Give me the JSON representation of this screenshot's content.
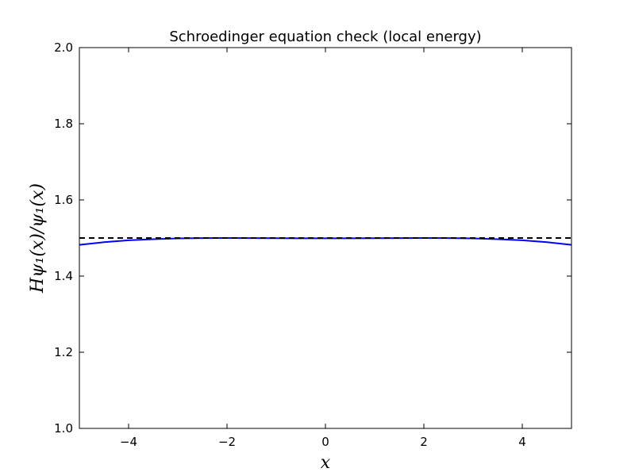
{
  "chart_data": {
    "type": "line",
    "title": "Schroedinger equation check (local energy)",
    "xlabel": "x",
    "ylabel": "Hψ₁(x)/ψ₁(x)",
    "xlim": [
      -5,
      5
    ],
    "ylim": [
      1.0,
      2.0
    ],
    "grid": false,
    "x_ticks": [
      -4,
      -2,
      0,
      2,
      4
    ],
    "x_tick_labels": [
      "−4",
      "−2",
      "0",
      "2",
      "4"
    ],
    "y_ticks": [
      1.0,
      1.2,
      1.4,
      1.6,
      1.8,
      2.0
    ],
    "y_tick_labels": [
      "1.0",
      "1.2",
      "1.4",
      "1.6",
      "1.8",
      "2.0"
    ],
    "series": [
      {
        "color": "#0000ff",
        "style": "solid",
        "x": [
          -5.0,
          -4.5,
          -4.0,
          -3.5,
          -3.0,
          -2.5,
          -2.0,
          -1.5,
          -1.0,
          -0.5,
          0.0,
          0.5,
          1.0,
          1.5,
          2.0,
          2.5,
          3.0,
          3.5,
          4.0,
          4.5,
          5.0
        ],
        "y": [
          1.482,
          1.489,
          1.494,
          1.497,
          1.499,
          1.4998,
          1.5,
          1.4998,
          1.4995,
          1.4993,
          1.4993,
          1.4993,
          1.4995,
          1.4998,
          1.5,
          1.4998,
          1.499,
          1.497,
          1.494,
          1.489,
          1.482
        ]
      },
      {
        "color": "#000000",
        "style": "dashed",
        "x": [
          -5.0,
          5.0
        ],
        "y": [
          1.5,
          1.5
        ]
      }
    ]
  }
}
